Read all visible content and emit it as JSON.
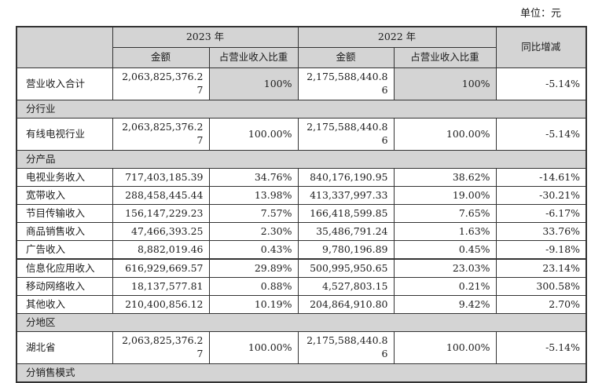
{
  "unit_label": "单位：元",
  "colors": {
    "section_bg": "#d4d4d4",
    "header_bg": "#d4d4d4",
    "highlight_cell_bg": "#d4d4d4",
    "border": "#333333",
    "text": "#1c1c1c"
  },
  "header": {
    "blank": "",
    "year_2023": "2023 年",
    "year_2022": "2022 年",
    "yoy": "同比增减",
    "amount": "金额",
    "pct_of_revenue": "占营业收入比重"
  },
  "tables": [
    {
      "rows": [
        {
          "type": "data",
          "label": "营业收入合计",
          "values": [
            "2,063,825,376.27",
            "100%",
            "2,175,588,440.86",
            "100%",
            "-5.14%"
          ],
          "tall": true,
          "pct_gray": true
        },
        {
          "type": "section",
          "label": "分行业"
        },
        {
          "type": "data",
          "label": "有线电视行业",
          "values": [
            "2,063,825,376.27",
            "100.00%",
            "2,175,588,440.86",
            "100.00%",
            "-5.14%"
          ],
          "tall": true
        },
        {
          "type": "section",
          "label": "分产品"
        },
        {
          "type": "data",
          "label": "电视业务收入",
          "values": [
            "717,403,185.39",
            "34.76%",
            "840,176,190.95",
            "38.62%",
            "-14.61%"
          ]
        },
        {
          "type": "data",
          "label": "宽带收入",
          "values": [
            "288,458,445.44",
            "13.98%",
            "413,337,997.33",
            "19.00%",
            "-30.21%"
          ]
        },
        {
          "type": "data",
          "label": "节目传输收入",
          "values": [
            "156,147,229.23",
            "7.57%",
            "166,418,599.85",
            "7.65%",
            "-6.17%"
          ]
        },
        {
          "type": "data",
          "label": "商品销售收入",
          "values": [
            "47,466,393.25",
            "2.30%",
            "35,486,791.24",
            "1.63%",
            "33.76%"
          ]
        },
        {
          "type": "data",
          "label": "广告收入",
          "values": [
            "8,882,019.46",
            "0.43%",
            "9,780,196.89",
            "0.45%",
            "-9.18%"
          ]
        }
      ]
    },
    {
      "rows": [
        {
          "type": "data",
          "label": "信息化应用收入",
          "values": [
            "616,929,669.57",
            "29.89%",
            "500,995,950.65",
            "23.03%",
            "23.14%"
          ]
        },
        {
          "type": "data",
          "label": "移动网络收入",
          "values": [
            "18,137,577.81",
            "0.88%",
            "4,527,803.15",
            "0.21%",
            "300.58%"
          ]
        },
        {
          "type": "data",
          "label": "其他收入",
          "values": [
            "210,400,856.12",
            "10.19%",
            "204,864,910.80",
            "9.42%",
            "2.70%"
          ]
        },
        {
          "type": "section",
          "label": "分地区"
        },
        {
          "type": "data",
          "label": "湖北省",
          "values": [
            "2,063,825,376.27",
            "100.00%",
            "2,175,588,440.86",
            "100.00%",
            "-5.14%"
          ],
          "tall": true
        },
        {
          "type": "section",
          "label": "分销售模式"
        }
      ]
    }
  ]
}
